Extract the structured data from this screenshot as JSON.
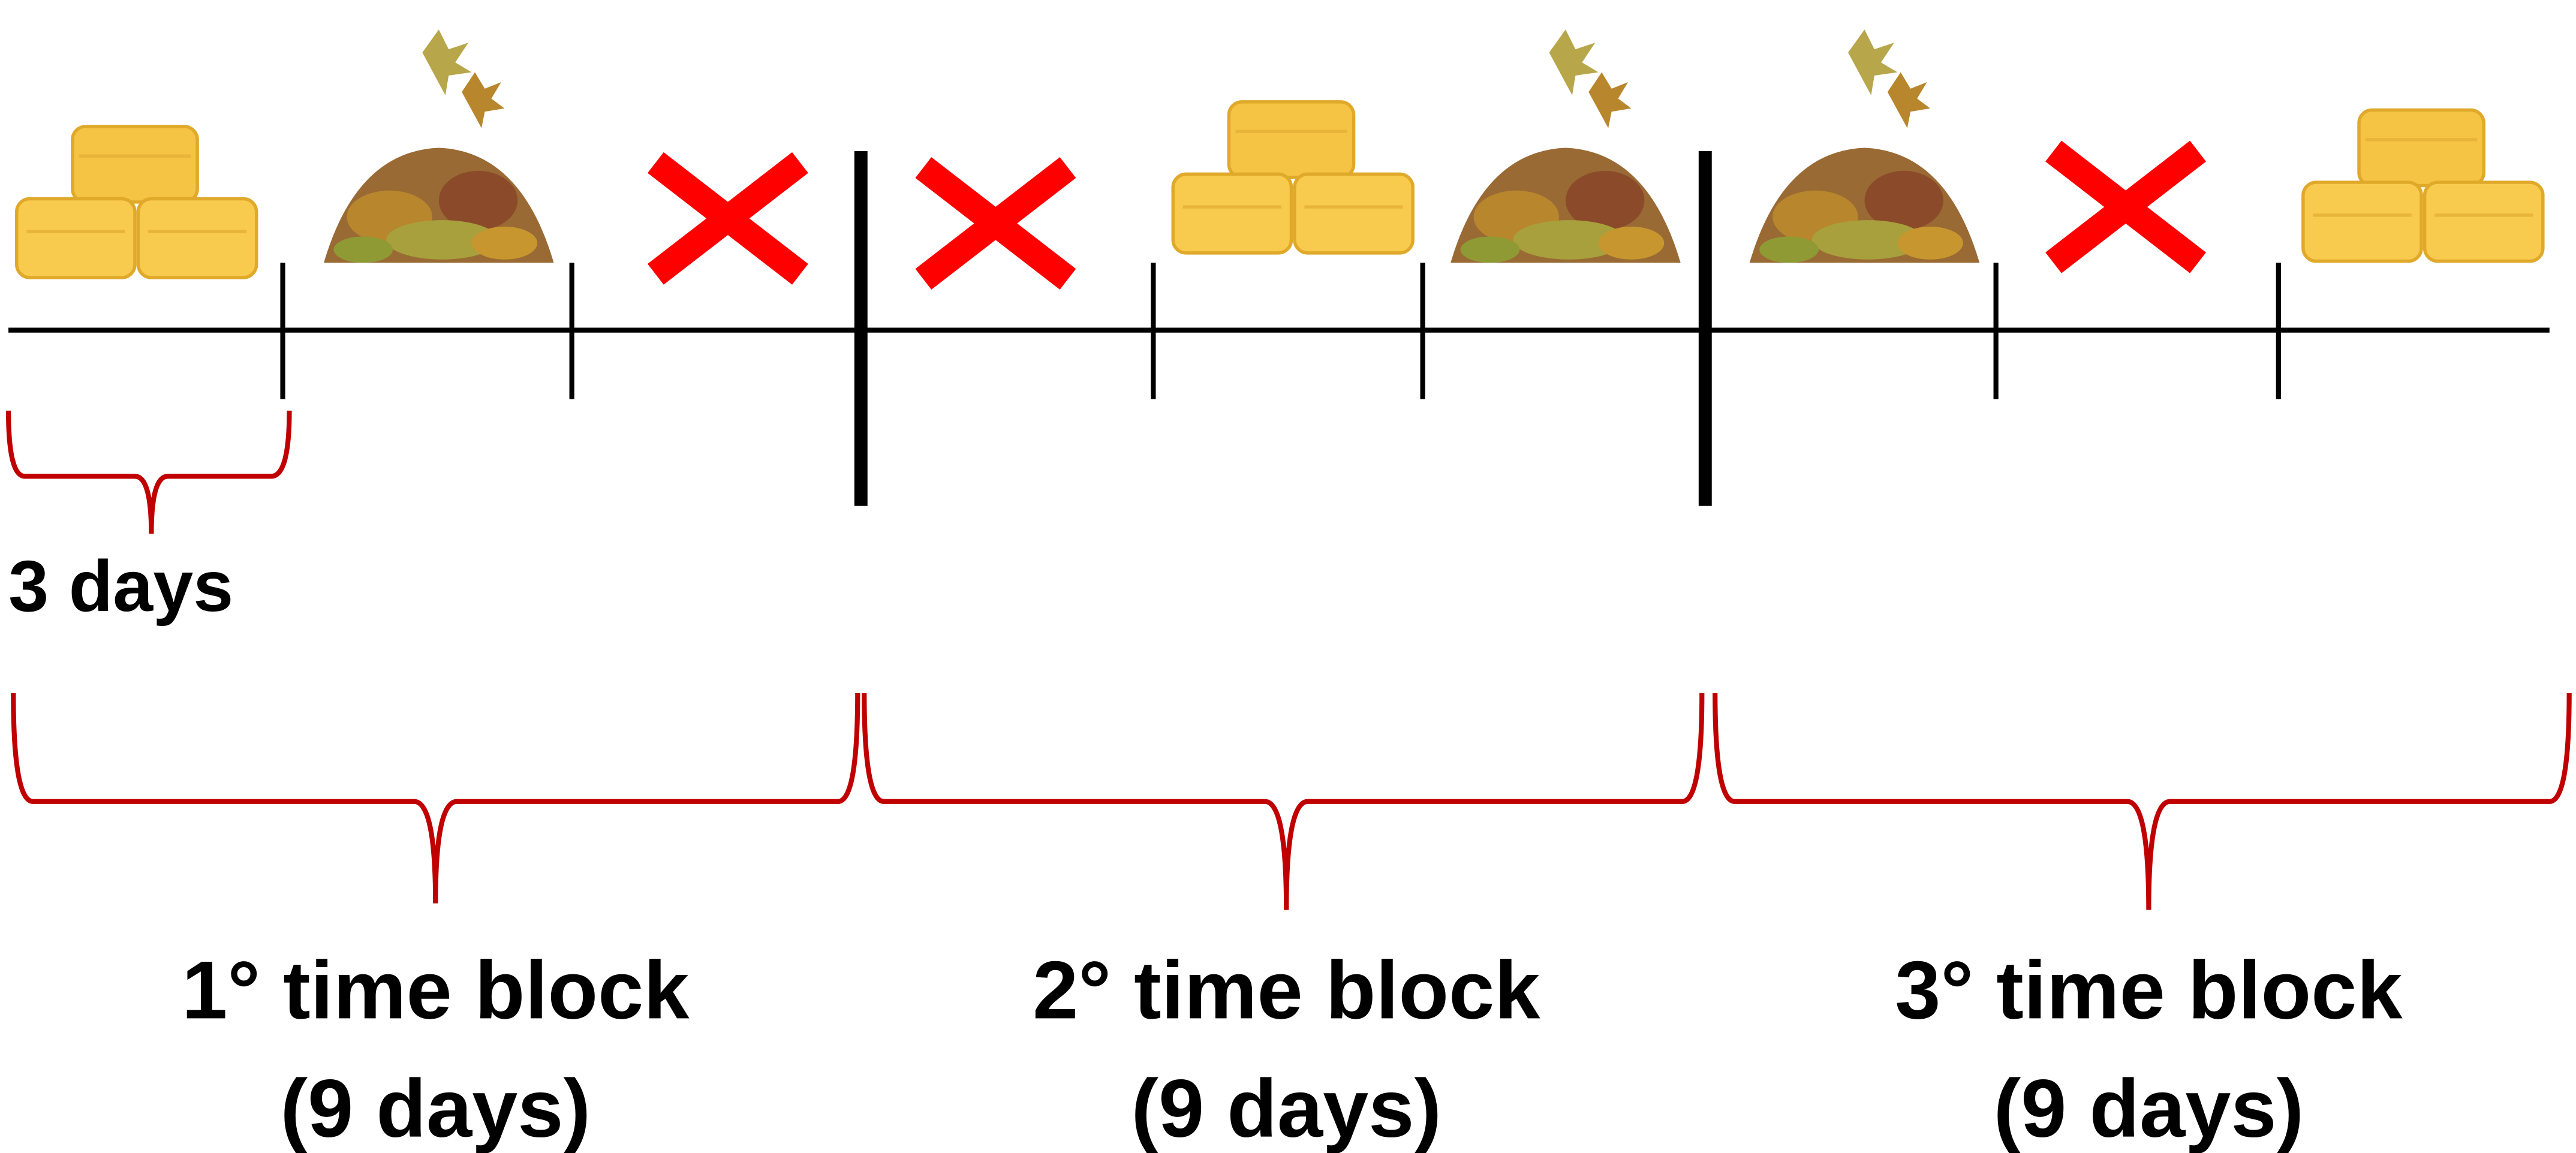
{
  "time_unit_label": "3 days",
  "time_blocks": [
    {
      "title": "1° time block",
      "duration": "(9 days)"
    },
    {
      "title": "2° time block",
      "duration": "(9 days)"
    },
    {
      "title": "3° time block",
      "duration": "(9 days)"
    }
  ]
}
